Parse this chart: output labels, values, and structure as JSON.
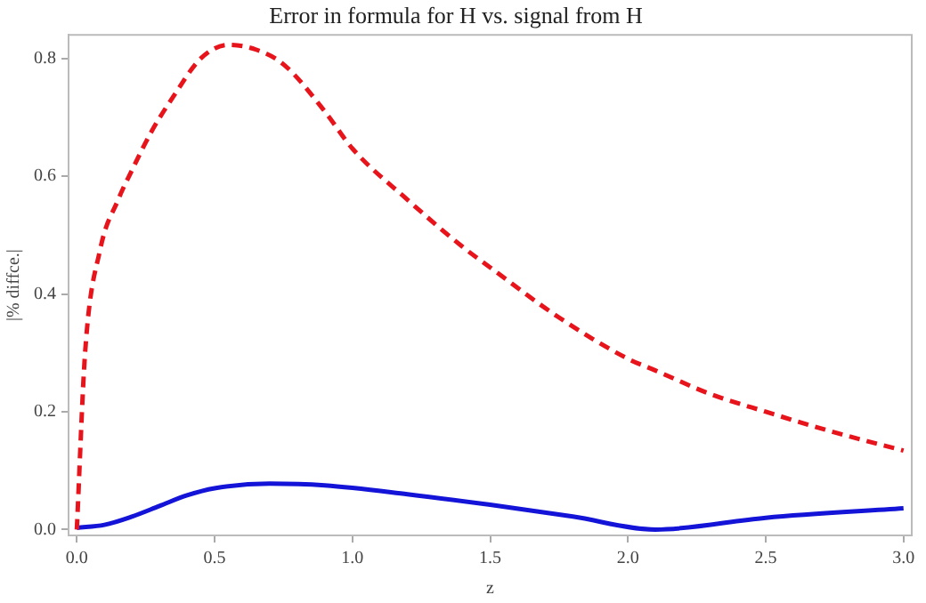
{
  "chart_data": {
    "type": "line",
    "title": "Error in formula for H vs. signal from H",
    "xlabel": "z",
    "ylabel": "|% diffce.|",
    "xlim": [
      -0.03,
      3.03
    ],
    "xticks": [
      {
        "value": 0,
        "label": "0.0"
      },
      {
        "value": 0.5,
        "label": "0.5"
      },
      {
        "value": 1,
        "label": "1.0"
      },
      {
        "value": 1.5,
        "label": "1.5"
      },
      {
        "value": 2,
        "label": "2.0"
      },
      {
        "value": 2.5,
        "label": "2.5"
      },
      {
        "value": 3,
        "label": "3.0"
      }
    ],
    "ylim": [
      -0.01,
      0.84
    ],
    "yticks": [
      {
        "value": 0,
        "label": "0.0"
      },
      {
        "value": 0.2,
        "label": "0.2"
      },
      {
        "value": 0.4,
        "label": "0.4"
      },
      {
        "value": 0.6,
        "label": "0.6"
      },
      {
        "value": 0.8,
        "label": "0.8"
      }
    ],
    "grid": false,
    "legend": false,
    "marker": "none",
    "series": [
      {
        "color": "#e8141c",
        "line_style": "dashed",
        "x": [
          0,
          0.03,
          0.085,
          0.15,
          0.2,
          0.27,
          0.35,
          0.45,
          0.55,
          0.65,
          0.75,
          0.9,
          1.0,
          1.2,
          1.4,
          1.5,
          1.75,
          2.0,
          2.1,
          2.3,
          2.5,
          2.75,
          3.0
        ],
        "values": [
          0,
          0.3,
          0.476,
          0.56,
          0.61,
          0.675,
          0.735,
          0.8,
          0.823,
          0.815,
          0.79,
          0.71,
          0.647,
          0.56,
          0.48,
          0.445,
          0.36,
          0.29,
          0.27,
          0.23,
          0.2,
          0.165,
          0.134
        ]
      },
      {
        "color": "#1414d8",
        "line_style": "solid",
        "x": [
          0,
          0.1,
          0.2,
          0.3,
          0.4,
          0.5,
          0.7,
          0.9,
          1.2,
          1.5,
          1.8,
          2.1,
          2.5,
          3.0
        ],
        "values": [
          0.003,
          0.008,
          0.022,
          0.04,
          0.058,
          0.07,
          0.078,
          0.075,
          0.06,
          0.042,
          0.022,
          0.0,
          0.02,
          0.036
        ]
      }
    ]
  }
}
